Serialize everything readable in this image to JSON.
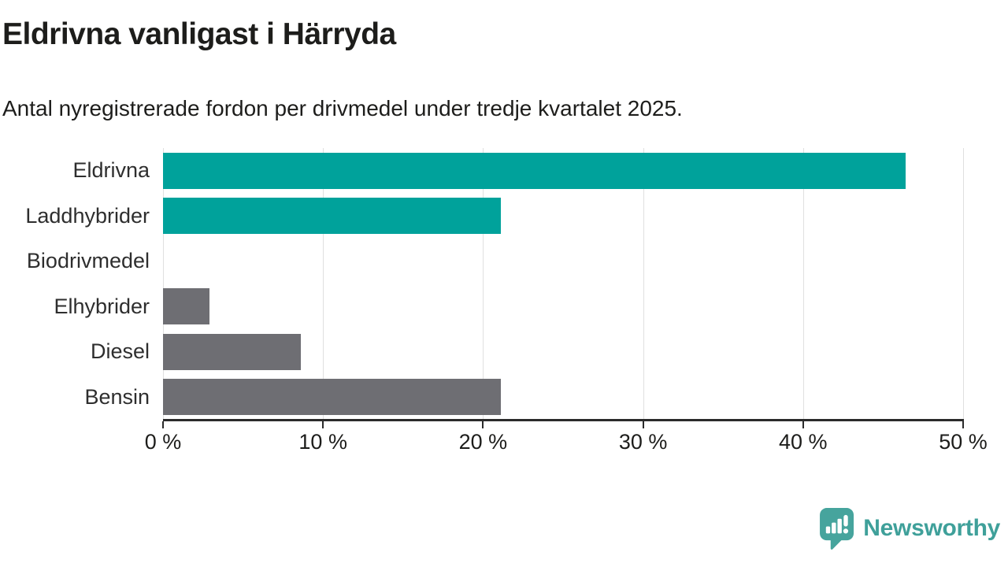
{
  "chart_data": {
    "type": "bar",
    "orientation": "horizontal",
    "title": "Eldrivna vanligast i Härryda",
    "subtitle": "Antal nyregistrerade fordon per drivmedel under tredje kvartalet 2025.",
    "categories": [
      "Eldrivna",
      "Laddhybrider",
      "Biodrivmedel",
      "Elhybrider",
      "Diesel",
      "Bensin"
    ],
    "values": [
      46.4,
      21.1,
      0,
      2.9,
      8.6,
      21.1
    ],
    "unit": "%",
    "xlim": [
      0,
      50
    ],
    "xticks": [
      0,
      10,
      20,
      30,
      40,
      50
    ],
    "xtick_labels": [
      "0 %",
      "10 %",
      "20 %",
      "30 %",
      "40 %",
      "50 %"
    ],
    "grid": "vertical-only",
    "legend": "none",
    "bar_colors": [
      "#00a29b",
      "#00a29b",
      "#6e6e73",
      "#6e6e73",
      "#6e6e73",
      "#6e6e73"
    ],
    "highlight_color": "#00a29b",
    "default_color": "#6e6e73",
    "gridline_color": "#e0e0e0",
    "axis_color": "#2b2b2b"
  },
  "branding": {
    "logo_text": "Newsworthy",
    "logo_color": "#3fa09a",
    "logo_icon": "newsworthy-speech-bubble-chart-icon"
  }
}
